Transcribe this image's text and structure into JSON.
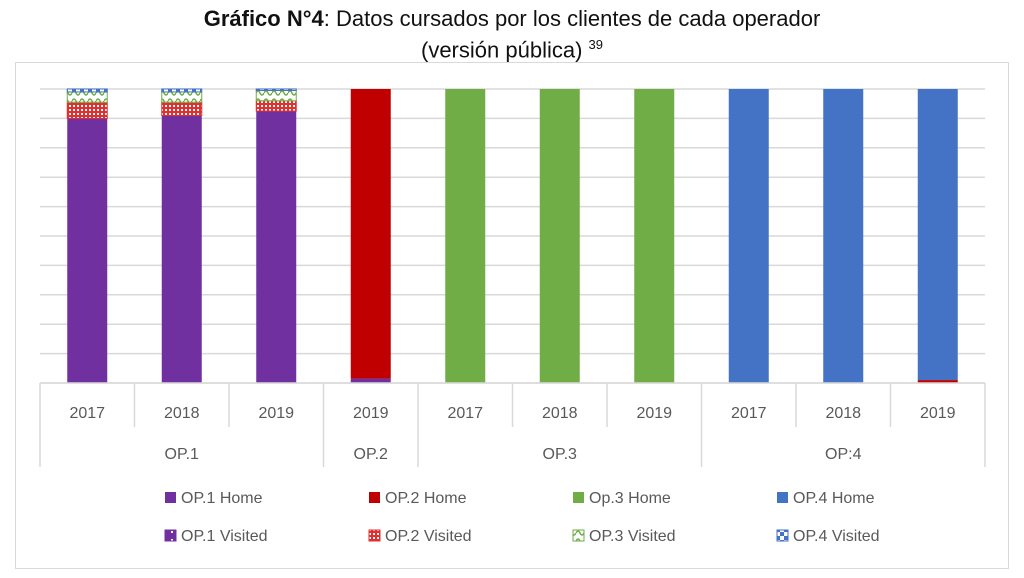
{
  "title": {
    "bold": "Gráfico N°4",
    "rest": ": Datos cursados por los clientes de cada operador",
    "line2": "(versión pública)",
    "footnote": "39"
  },
  "chart_data": {
    "type": "bar",
    "stacked": "percent",
    "ylim": [
      0,
      100
    ],
    "grid": true,
    "legend_position": "bottom",
    "groups": [
      {
        "label": "OP.1",
        "years": [
          "2017",
          "2018",
          "2019"
        ]
      },
      {
        "label": "OP.2",
        "years": [
          "2019"
        ]
      },
      {
        "label": "OP.3",
        "years": [
          "2017",
          "2018",
          "2019"
        ]
      },
      {
        "label": "OP:4",
        "years": [
          "2017",
          "2018",
          "2019"
        ]
      }
    ],
    "categories": [
      "OP.1 2017",
      "OP.1 2018",
      "OP.1 2019",
      "OP.2 2019",
      "OP.3 2017",
      "OP.3 2018",
      "OP.3 2019",
      "OP:4 2017",
      "OP:4 2018",
      "OP:4 2019"
    ],
    "series": [
      {
        "name": "OP.1 Home",
        "color": "#7030a0",
        "pattern": "solid",
        "values": [
          90,
          91,
          92.5,
          1.5,
          0,
          0,
          0,
          0,
          0,
          0
        ]
      },
      {
        "name": "OP.2 Home",
        "color": "#c00000",
        "pattern": "solid",
        "values": [
          0,
          0,
          0,
          98.5,
          0,
          0,
          0,
          0,
          0,
          1
        ]
      },
      {
        "name": "Op.3 Home",
        "color": "#70ad47",
        "pattern": "solid",
        "values": [
          0,
          0,
          0,
          0,
          100,
          100,
          100,
          0,
          0,
          0
        ]
      },
      {
        "name": "OP.4 Home",
        "color": "#4472c4",
        "pattern": "solid",
        "values": [
          0,
          0,
          0,
          0,
          0,
          0,
          0,
          100,
          100,
          99
        ]
      },
      {
        "name": "OP.1 Visited",
        "color": "#7030a0",
        "pattern": "dots",
        "values": [
          0,
          0,
          0,
          0,
          0,
          0,
          0,
          0,
          0,
          0
        ]
      },
      {
        "name": "OP.2 Visited",
        "color": "#e03030",
        "pattern": "grid",
        "values": [
          5.5,
          4.5,
          3.5,
          0,
          0,
          0,
          0,
          0,
          0,
          0
        ]
      },
      {
        "name": "OP.3 Visited",
        "color": "#70ad47",
        "pattern": "wave",
        "values": [
          3.5,
          3.5,
          3.5,
          0,
          0,
          0,
          0,
          0,
          0,
          0
        ]
      },
      {
        "name": "OP.4 Visited",
        "color": "#4472c4",
        "pattern": "check",
        "values": [
          1,
          1,
          0.5,
          0,
          0,
          0,
          0,
          0,
          0,
          0
        ]
      }
    ]
  }
}
